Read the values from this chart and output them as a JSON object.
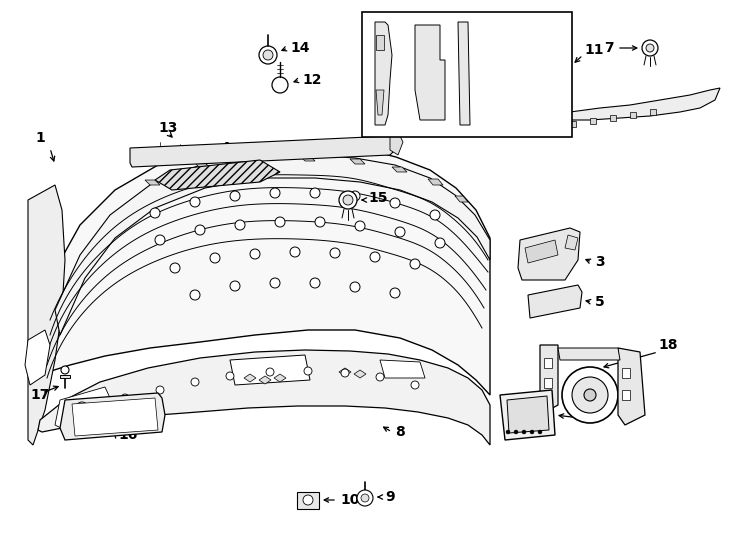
{
  "background_color": "#ffffff",
  "line_color": "#000000",
  "text_color": "#000000",
  "fig_width": 7.34,
  "fig_height": 5.4,
  "dpi": 100
}
